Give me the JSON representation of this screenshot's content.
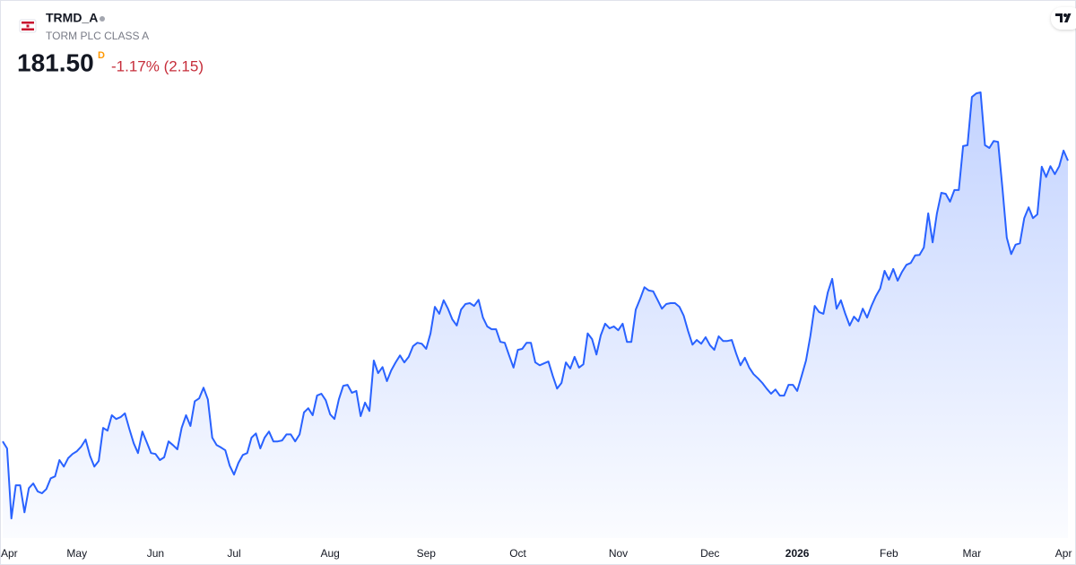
{
  "header": {
    "symbol": "TRMD_A",
    "name": "TORM PLC CLASS A",
    "price": "181.50",
    "interval": "D",
    "change": "-1.17% (2.15)"
  },
  "chart_data": {
    "type": "area",
    "series": [
      {
        "color": "#2962ff",
        "values": [
          121.4,
          119.9,
          104.9,
          112.0,
          112.0,
          106.2,
          111.4,
          112.4,
          110.7,
          110.3,
          111.2,
          113.5,
          113.9,
          117.4,
          116.0,
          117.8,
          118.7,
          119.3,
          120.3,
          121.8,
          118.3,
          116.0,
          117.2,
          124.3,
          123.7,
          127.0,
          126.2,
          126.6,
          127.4,
          124.1,
          121.0,
          118.9,
          123.5,
          121.2,
          118.9,
          118.7,
          117.4,
          118.0,
          121.4,
          120.6,
          119.7,
          124.3,
          127.0,
          124.7,
          130.0,
          130.6,
          132.9,
          130.4,
          122.2,
          120.6,
          120.1,
          119.5,
          116.2,
          114.3,
          116.8,
          118.5,
          118.9,
          122.2,
          123.1,
          119.9,
          122.2,
          123.5,
          121.4,
          121.4,
          121.6,
          122.9,
          122.9,
          121.4,
          122.9,
          127.6,
          128.5,
          127.0,
          131.2,
          131.6,
          130.2,
          127.2,
          126.2,
          130.4,
          133.3,
          133.5,
          131.8,
          132.2,
          126.8,
          129.7,
          127.9,
          138.7,
          136.0,
          137.3,
          134.3,
          136.6,
          138.3,
          139.8,
          138.3,
          139.5,
          141.8,
          142.5,
          142.3,
          141.2,
          144.5,
          150.2,
          148.7,
          151.6,
          149.8,
          147.5,
          146.2,
          149.6,
          150.8,
          151.0,
          150.4,
          151.7,
          147.9,
          146.0,
          145.4,
          145.4,
          142.7,
          142.5,
          139.8,
          137.2,
          141.0,
          141.2,
          142.5,
          142.5,
          138.3,
          137.7,
          138.1,
          138.5,
          135.4,
          132.7,
          133.9,
          138.3,
          137.0,
          139.5,
          137.2,
          137.9,
          144.5,
          143.3,
          140.0,
          144.1,
          146.6,
          145.6,
          146.0,
          145.2,
          146.6,
          142.7,
          142.7,
          149.6,
          151.9,
          154.4,
          153.7,
          153.5,
          151.7,
          149.8,
          150.8,
          151.0,
          151.0,
          150.2,
          148.3,
          145.0,
          142.1,
          143.1,
          142.3,
          143.7,
          142.0,
          141.0,
          143.9,
          142.9,
          142.9,
          143.1,
          140.2,
          137.7,
          139.3,
          137.2,
          135.8,
          134.9,
          133.9,
          132.7,
          131.6,
          132.5,
          131.2,
          131.2,
          133.5,
          133.5,
          132.2,
          135.4,
          138.7,
          143.9,
          150.4,
          149.1,
          148.7,
          153.3,
          156.2,
          149.8,
          151.6,
          148.7,
          146.2,
          148.1,
          147.1,
          149.8,
          147.9,
          150.4,
          152.5,
          154.1,
          157.9,
          156.0,
          158.3,
          155.8,
          157.7,
          159.2,
          159.6,
          161.2,
          161.3,
          162.9,
          170.2,
          164.0,
          170.2,
          174.6,
          174.4,
          172.7,
          175.2,
          175.2,
          184.6,
          184.8,
          195.1,
          195.9,
          196.1,
          184.8,
          184.2,
          185.7,
          185.5,
          175.5,
          165.0,
          161.5,
          163.5,
          163.8,
          169.2,
          171.5,
          169.2,
          170.0,
          180.2,
          178.0,
          180.3,
          178.6,
          180.3,
          183.65,
          181.5
        ]
      }
    ],
    "xlim": [
      0,
      244
    ],
    "xticks": [
      {
        "value": 1,
        "label": "Apr"
      },
      {
        "value": 17,
        "label": "May"
      },
      {
        "value": 35,
        "label": "Jun"
      },
      {
        "value": 53,
        "label": "Jul"
      },
      {
        "value": 75,
        "label": "Aug"
      },
      {
        "value": 97,
        "label": "Sep"
      },
      {
        "value": 118,
        "label": "Oct"
      },
      {
        "value": 141,
        "label": "Nov"
      },
      {
        "value": 162,
        "label": "Dec"
      },
      {
        "value": 182,
        "label": "2026"
      },
      {
        "value": 203,
        "label": "Feb"
      },
      {
        "value": 222,
        "label": "Mar"
      },
      {
        "value": 243,
        "label": "Apr"
      }
    ],
    "ylim": [
      100.7,
      198.6
    ]
  }
}
